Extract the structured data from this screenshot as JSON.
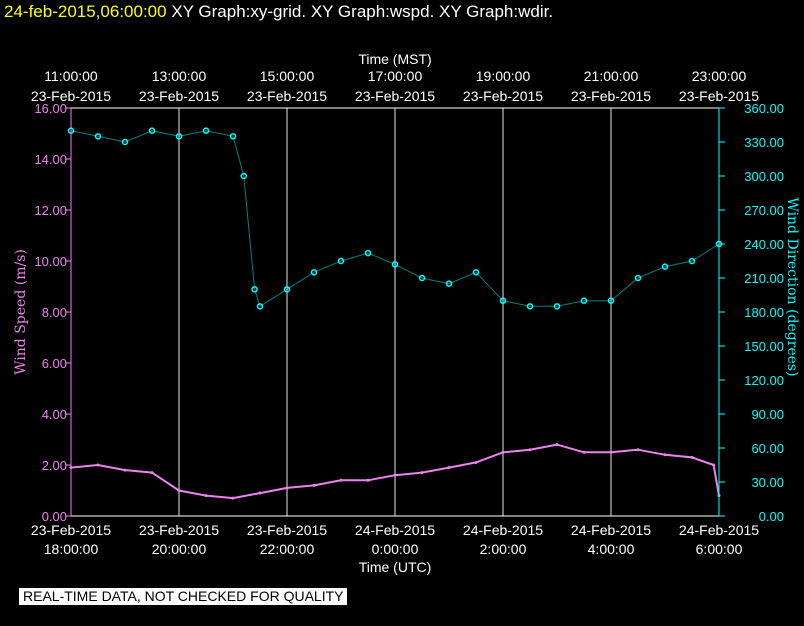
{
  "header": {
    "date": "24-feb-2015,06:00:00",
    "graphs": " XY Graph:xy-grid.  XY Graph:wspd.  XY Graph:wdir."
  },
  "banner": "REAL-TIME DATA, NOT CHECKED FOR QUALITY",
  "colors": {
    "wspd": "#ee82ee",
    "wdir": "#00ffff",
    "grid": "#ffffff",
    "text": "#ffffff",
    "title": "#ffff00"
  },
  "chart_data": {
    "type": "scatter",
    "title": "",
    "top_axis": {
      "label": "Time (MST)",
      "ticks": [
        {
          "time": "11:00:00",
          "date": "23-Feb-2015"
        },
        {
          "time": "13:00:00",
          "date": "23-Feb-2015"
        },
        {
          "time": "15:00:00",
          "date": "23-Feb-2015"
        },
        {
          "time": "17:00:00",
          "date": "23-Feb-2015"
        },
        {
          "time": "19:00:00",
          "date": "23-Feb-2015"
        },
        {
          "time": "21:00:00",
          "date": "23-Feb-2015"
        },
        {
          "time": "23:00:00",
          "date": "23-Feb-2015"
        }
      ]
    },
    "bottom_axis": {
      "label": "Time (UTC)",
      "ticks": [
        {
          "date": "23-Feb-2015",
          "time": "18:00:00"
        },
        {
          "date": "23-Feb-2015",
          "time": "20:00:00"
        },
        {
          "date": "23-Feb-2015",
          "time": "22:00:00"
        },
        {
          "date": "24-Feb-2015",
          "time": "0:00:00"
        },
        {
          "date": "24-Feb-2015",
          "time": "2:00:00"
        },
        {
          "date": "24-Feb-2015",
          "time": "4:00:00"
        },
        {
          "date": "24-Feb-2015",
          "time": "6:00:00"
        }
      ]
    },
    "x_hours_utc": [
      18,
      20,
      22,
      24,
      26,
      28,
      30
    ],
    "xlim_hours_utc": [
      18,
      30
    ],
    "left_axis": {
      "label": "Wind Speed (m/s)",
      "ylim": [
        0,
        16
      ],
      "ticks": [
        "0.00",
        "2.00",
        "4.00",
        "6.00",
        "8.00",
        "10.00",
        "12.00",
        "14.00",
        "16.00"
      ]
    },
    "right_axis": {
      "label": "Wind Direction (degrees)",
      "ylim": [
        0,
        360
      ],
      "ticks": [
        "0.00",
        "30.00",
        "60.00",
        "90.00",
        "120.00",
        "150.00",
        "180.00",
        "210.00",
        "240.00",
        "270.00",
        "300.00",
        "330.00",
        "360.00"
      ]
    },
    "grid": "vertical",
    "series": [
      {
        "name": "Wind Speed",
        "axis": "left",
        "style": "line",
        "x_hours_utc": [
          18.0,
          18.5,
          19.0,
          19.5,
          20.0,
          20.5,
          21.0,
          21.5,
          22.0,
          22.5,
          23.0,
          23.5,
          24.0,
          24.5,
          25.0,
          25.5,
          26.0,
          26.5,
          27.0,
          27.5,
          28.0,
          28.5,
          29.0,
          29.5,
          29.9,
          30.0
        ],
        "values": [
          1.9,
          2.0,
          1.8,
          1.7,
          1.0,
          0.8,
          0.7,
          0.9,
          1.1,
          1.2,
          1.4,
          1.4,
          1.6,
          1.7,
          1.9,
          2.1,
          2.5,
          2.6,
          2.8,
          2.5,
          2.5,
          2.6,
          2.4,
          2.3,
          2.0,
          0.8
        ]
      },
      {
        "name": "Wind Direction",
        "axis": "right",
        "style": "points",
        "x_hours_utc": [
          18.0,
          18.5,
          19.0,
          19.5,
          20.0,
          20.5,
          21.0,
          21.2,
          21.4,
          21.5,
          22.0,
          22.5,
          23.0,
          23.5,
          24.0,
          24.5,
          25.0,
          25.5,
          26.0,
          26.5,
          27.0,
          27.5,
          28.0,
          28.5,
          29.0,
          29.5,
          30.0
        ],
        "values": [
          340,
          335,
          330,
          340,
          335,
          340,
          335,
          300,
          200,
          185,
          200,
          215,
          225,
          232,
          222,
          210,
          205,
          215,
          190,
          185,
          185,
          190,
          190,
          210,
          220,
          225,
          240
        ]
      }
    ]
  }
}
